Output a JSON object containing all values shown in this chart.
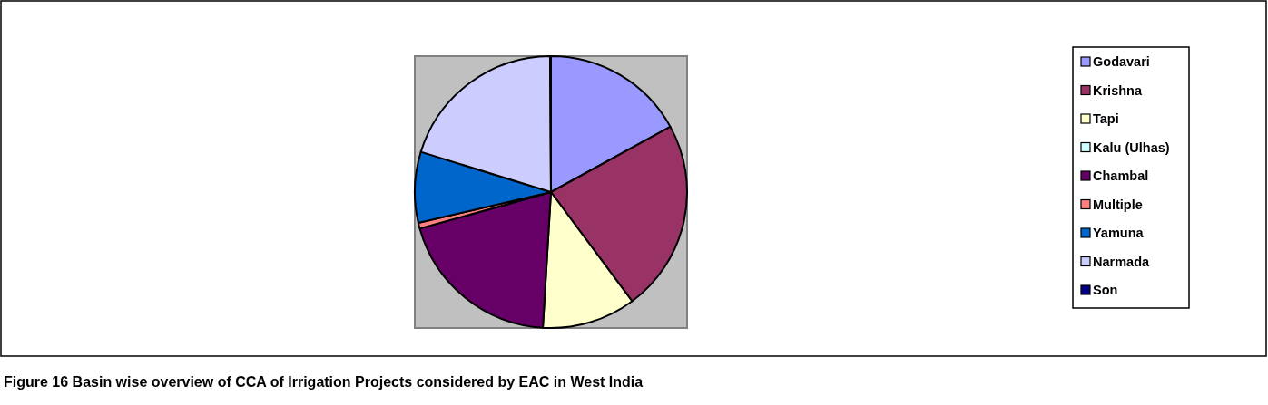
{
  "chart_data": {
    "type": "pie",
    "annotations": [
      "Figure 16 Basin wise overview of CCA of Irrigation Projects considered by EAC in West India"
    ],
    "categories": [
      "Godavari",
      "Krishna",
      "Tapi",
      "Kalu (Ulhas)",
      "Chambal",
      "Multiple",
      "Yamuna",
      "Narmada",
      "Son"
    ],
    "values": [
      17,
      22.8,
      11.1,
      null,
      19.7,
      0.7,
      8.4,
      20.1,
      0.1
    ],
    "colors": [
      "#9999ff",
      "#993366",
      "#ffffcc",
      "#ccffff",
      "#660066",
      "#ff8080",
      "#0066cc",
      "#ccccff",
      "#000080"
    ],
    "legend": "right"
  }
}
